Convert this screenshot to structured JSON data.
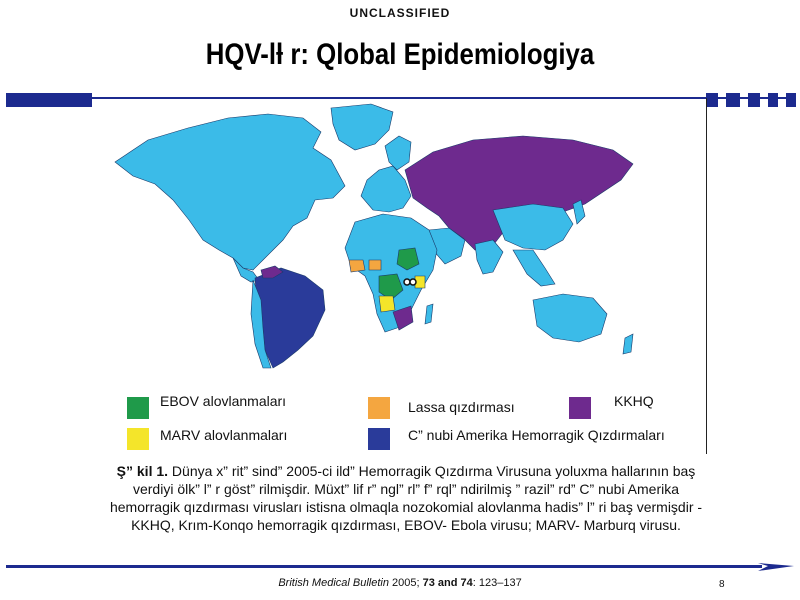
{
  "header": {
    "classification": "UNCLASSIFIED",
    "title": "HQV-lƚ r: Qlobal Epidemiologiya"
  },
  "map": {
    "colors": {
      "land_default": "#3bbbe8",
      "ebov": "#1f9a4a",
      "marv": "#f4e52a",
      "lassa": "#f4a640",
      "kkhq": "#6e2a8e",
      "american_hf": "#2a3b9a",
      "ocean": "#ffffff"
    }
  },
  "legend": {
    "items": [
      {
        "label": "EBOV alovlanmaları",
        "color": "#1f9a4a"
      },
      {
        "label": "Lassa qızdırması",
        "color": "#f4a640"
      },
      {
        "label": "KKHQ",
        "color": "#6e2a8e"
      },
      {
        "label": "MARV alovlanmaları",
        "color": "#f4e52a"
      },
      {
        "label": "C” nubi Amerika Hemorragik Qızdırmaları",
        "color": "#2a3b9a"
      }
    ]
  },
  "caption": {
    "lead": "Ş” kil 1.",
    "text": " Dünya x” rit” sind” 2005-ci ild” Hemorragik Qızdırma Virusuna yoluxma hallarının baş verdiyi ölk” l” r göst” rilmişdir. Müxt” lif r” ngl” rl” f” rql” ndirilmiş ” razil” rd” C” nubi Amerika hemorragik qızdırması virusları istisna olmaqla nozokomial alovlanma hadis” l” ri baş vermişdir - KKHQ, Krım-Konqo hemorragik qızdırması, EBOV- Ebola virusu; MARV- Marburq virusu."
  },
  "footer": {
    "journal": "British Medical Bulletin",
    "year": " 2005; ",
    "volume": "73 and 74",
    "pages": ": 123–137",
    "page_number": "8"
  }
}
